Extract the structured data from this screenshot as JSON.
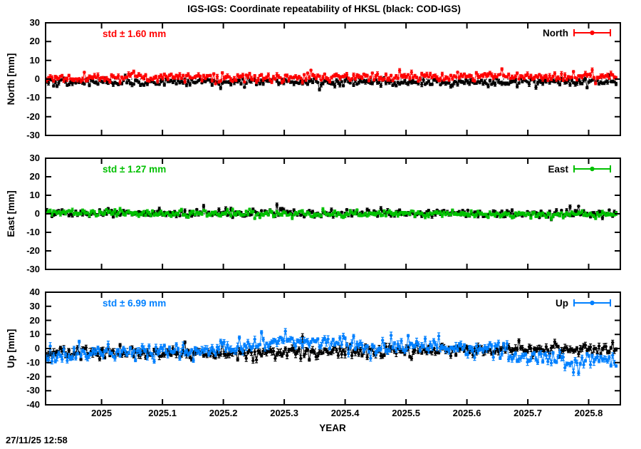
{
  "title": "IGS-IGS: Coordinate repeatability of HKSL (black: COD-IGS)",
  "timestamp": "27/11/25 12:58",
  "colors": {
    "north": "#ff0000",
    "east": "#00c000",
    "up": "#0080ff",
    "reference": "#000000"
  },
  "x_axis": {
    "label": "YEAR",
    "xlim": [
      2024.908,
      2025.852
    ],
    "tick_values": [
      2025.0,
      2025.1,
      2025.2,
      2025.3,
      2025.4,
      2025.5,
      2025.6,
      2025.7,
      2025.8
    ],
    "tick_labels": [
      "2025",
      "2025.1",
      "2025.2",
      "2025.3",
      "2025.4",
      "2025.5",
      "2025.6",
      "2025.7",
      "2025.8"
    ]
  },
  "chart_data": [
    {
      "type": "scatter",
      "panel": "north",
      "ylabel": "North [mm]",
      "ylim": [
        -30,
        30
      ],
      "ytick_values": [
        30,
        20,
        10,
        0,
        -10,
        -20,
        -30
      ],
      "ytick_labels": [
        "30",
        "20",
        "10",
        "0",
        "-10",
        "-20",
        "-30"
      ],
      "std_label": "std ± 1.60 mm",
      "std_value_mm": 1.6,
      "legend_label": "North",
      "zero_line": true,
      "series": [
        {
          "name": "COD-IGS",
          "color_key": "reference",
          "marker": "point-errorbar-line",
          "n": 335,
          "x_start": 2024.91,
          "x_end": 2025.845,
          "std": 1.05,
          "trend": [
            [
              2024.908,
              -1.5
            ],
            [
              2025.845,
              -1.5
            ]
          ],
          "spike": {
            "prob": 0.015,
            "min": -4.0,
            "max": -1.5
          },
          "ebar": [
            0.4,
            1.2
          ],
          "seed": 101
        },
        {
          "name": "IGS-IGS",
          "color_key": "north",
          "marker": "point-errorbar-line",
          "n": 335,
          "x_start": 2024.91,
          "x_end": 2025.845,
          "std": 1.15,
          "trend": [
            [
              2024.908,
              0.5
            ],
            [
              2025.3,
              0.7
            ],
            [
              2025.5,
              1.2
            ],
            [
              2025.62,
              1.6
            ],
            [
              2025.75,
              1.2
            ],
            [
              2025.845,
              1.0
            ]
          ],
          "spike": {
            "prob": 0.02,
            "min": 1.5,
            "max": 4.5
          },
          "ebar": [
            0.4,
            1.2
          ],
          "seed": 102
        }
      ]
    },
    {
      "type": "scatter",
      "panel": "east",
      "ylabel": "East [mm]",
      "ylim": [
        -30,
        30
      ],
      "ytick_values": [
        30,
        20,
        10,
        0,
        -10,
        -20,
        -30
      ],
      "ytick_labels": [
        "30",
        "20",
        "10",
        "0",
        "-10",
        "-20",
        "-30"
      ],
      "std_label": "std ± 1.27 mm",
      "std_value_mm": 1.27,
      "legend_label": "East",
      "zero_line": true,
      "series": [
        {
          "name": "COD-IGS",
          "color_key": "reference",
          "marker": "point-errorbar-line",
          "n": 335,
          "x_start": 2024.91,
          "x_end": 2025.845,
          "std": 1.05,
          "trend": [
            [
              2024.908,
              0.3
            ],
            [
              2025.845,
              0.2
            ]
          ],
          "spike": {
            "prob": 0.01,
            "min": 1.5,
            "max": 6.0
          },
          "ebar": [
            0.4,
            1.1
          ],
          "seed": 103
        },
        {
          "name": "IGS-IGS",
          "color_key": "east",
          "marker": "point-errorbar-line",
          "n": 335,
          "x_start": 2024.91,
          "x_end": 2025.845,
          "std": 0.85,
          "trend": [
            [
              2024.908,
              0.3
            ],
            [
              2025.845,
              -0.3
            ]
          ],
          "spike": {
            "prob": 0.01,
            "min": -4.5,
            "max": 1.0
          },
          "ebar": [
            0.4,
            1.1
          ],
          "seed": 104
        }
      ]
    },
    {
      "type": "scatter",
      "panel": "up",
      "ylabel": "Up [mm]",
      "ylim": [
        -40,
        40
      ],
      "ytick_values": [
        40,
        30,
        20,
        10,
        0,
        -10,
        -20,
        -30,
        -40
      ],
      "ytick_labels": [
        "40",
        "30",
        "20",
        "10",
        "0",
        "-10",
        "-20",
        "-30",
        "-40"
      ],
      "std_label": "std ± 6.99 mm",
      "std_value_mm": 6.99,
      "legend_label": "Up",
      "zero_line": true,
      "series": [
        {
          "name": "COD-IGS",
          "color_key": "reference",
          "marker": "point-errorbar-line",
          "n": 335,
          "x_start": 2024.91,
          "x_end": 2025.845,
          "std": 2.0,
          "trend": [
            [
              2024.908,
              -3.5
            ],
            [
              2025.1,
              -3.0
            ],
            [
              2025.3,
              -2.5
            ],
            [
              2025.5,
              -1.5
            ],
            [
              2025.6,
              -0.5
            ],
            [
              2025.72,
              -0.5
            ],
            [
              2025.845,
              -1.0
            ]
          ],
          "spike": {
            "prob": 0.02,
            "min": -7.0,
            "max": 9.0
          },
          "ebar": [
            0.8,
            2.5
          ],
          "seed": 105
        },
        {
          "name": "IGS-IGS",
          "color_key": "up",
          "marker": "point-errorbar-line",
          "n": 335,
          "x_start": 2024.91,
          "x_end": 2025.845,
          "std": 2.8,
          "trend": [
            [
              2024.908,
              -4.0
            ],
            [
              2025.02,
              -3.0
            ],
            [
              2025.12,
              -1.5
            ],
            [
              2025.22,
              1.5
            ],
            [
              2025.3,
              5.5
            ],
            [
              2025.38,
              5.0
            ],
            [
              2025.46,
              0.5
            ],
            [
              2025.56,
              1.0
            ],
            [
              2025.64,
              -1.5
            ],
            [
              2025.71,
              -6.5
            ],
            [
              2025.78,
              -9.5
            ],
            [
              2025.845,
              -8.0
            ]
          ],
          "spike": {
            "prob": 0.04,
            "min": -9.0,
            "max": 8.0
          },
          "ebar": [
            0.8,
            2.5
          ],
          "seed": 106
        }
      ]
    }
  ]
}
